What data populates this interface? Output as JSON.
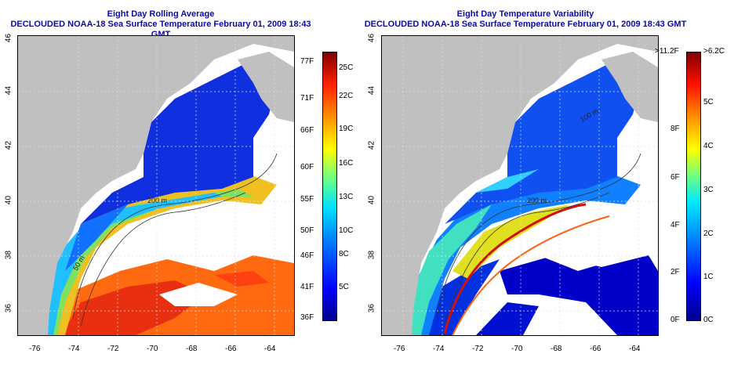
{
  "left_panel": {
    "title_line1": "Eight Day Rolling Average",
    "title_line2": "DECLOUDED NOAA-18 Sea Surface Temperature February 01, 2009 18:43 GMT",
    "colorbar_left_labels": [
      "77F",
      "71F",
      "66F",
      "60F",
      "55F",
      "50F",
      "46F",
      "41F",
      "36F"
    ],
    "colorbar_right_labels": [
      "25C",
      "22C",
      "19C",
      "16C",
      "13C",
      "10C",
      "8C",
      "5C"
    ]
  },
  "right_panel": {
    "title_line1": "Eight Day Temperature Variability",
    "title_line2": "DECLOUDED NOAA-18 Sea Surface Temperature February 01, 2009 18:43 GMT",
    "colorbar_left_labels": [
      ">11.2F",
      "8F",
      "6F",
      "4F",
      "2F",
      "0F"
    ],
    "colorbar_right_labels": [
      ">6.2C",
      "5C",
      "4C",
      "3C",
      "2C",
      "1C",
      "0C"
    ]
  },
  "map_labels": {
    "lat_ticks": [
      "46",
      "44",
      "42",
      "40",
      "38",
      "36"
    ],
    "lon_ticks": [
      "-76",
      "-74",
      "-72",
      "-70",
      "-68",
      "-66",
      "-64"
    ],
    "contour_labels": [
      "100 m",
      "200 m",
      "200 m",
      "50 m"
    ]
  },
  "colors": {
    "title": "#0a0aa8",
    "land": "#c0c0c0",
    "no_data": "#ffffff"
  }
}
